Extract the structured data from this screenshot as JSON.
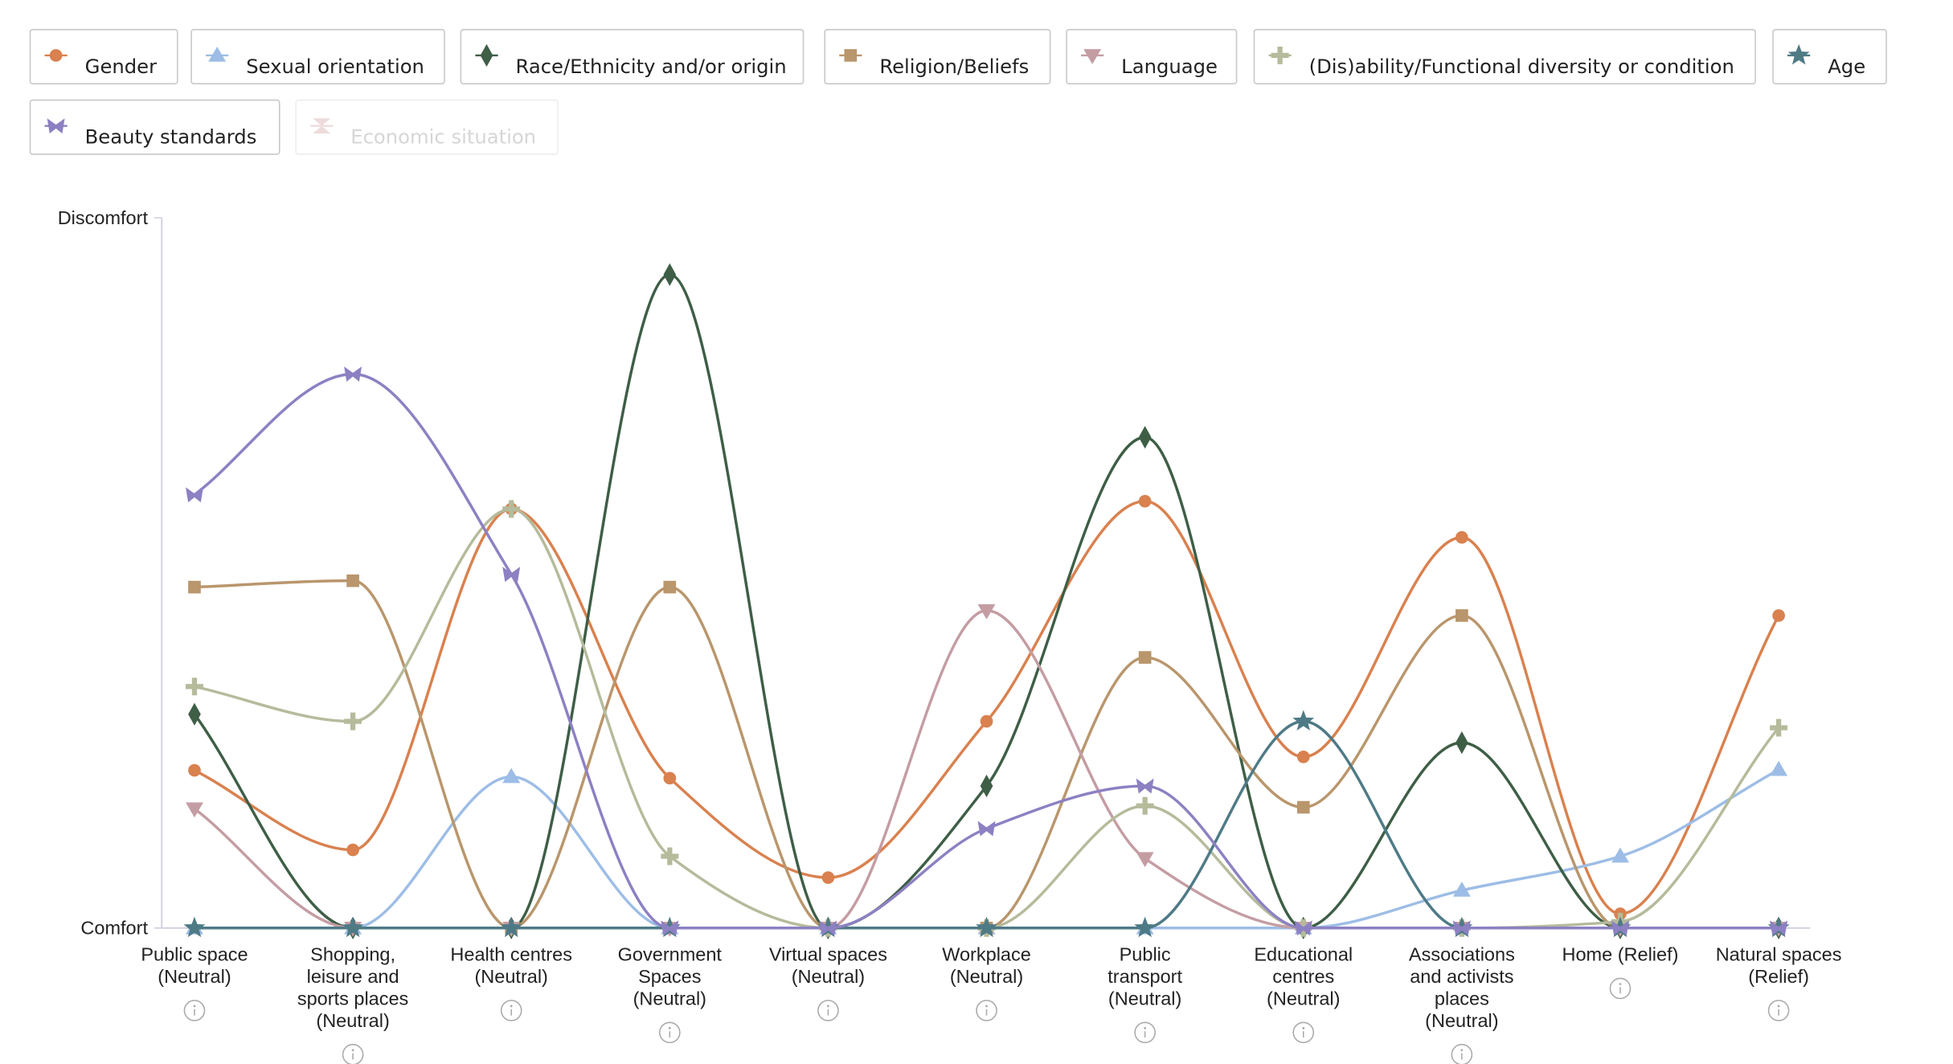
{
  "chart_data": {
    "type": "line",
    "categories": [
      "Public space\n(Neutral)",
      "Shopping,\nleisure and\nsports places\n(Neutral)",
      "Health centres\n(Neutral)",
      "Government\nSpaces\n(Neutral)",
      "Virtual spaces\n(Neutral)",
      "Workplace\n(Neutral)",
      "Public\ntransport\n(Neutral)",
      "Educational\ncentres\n(Neutral)",
      "Associations\nand activists\nplaces\n(Neutral)",
      "Home (Relief)",
      "Natural spaces\n(Relief)"
    ],
    "ylim": [
      0,
      100
    ],
    "yticks": [
      {
        "value": 0,
        "label": "Comfort"
      },
      {
        "value": 100,
        "label": "Discomfort"
      }
    ],
    "series": [
      {
        "name": "Gender",
        "color": "#d9814f",
        "marker": "circle",
        "visible": true,
        "values": [
          22.2,
          11.0,
          59.0,
          21.1,
          7.1,
          29.1,
          60.1,
          24.1,
          55.0,
          2.0,
          44.0
        ]
      },
      {
        "name": "Sexual orientation",
        "color": "#9dbde6",
        "marker": "triangle-up",
        "visible": true,
        "values": [
          0,
          0,
          21.3,
          0,
          0,
          0,
          0,
          0,
          5.3,
          10.1,
          22.3
        ]
      },
      {
        "name": "Race/Ethnicity and/or origin",
        "color": "#3e5e46",
        "marker": "diamond",
        "visible": true,
        "values": [
          30.1,
          0,
          0,
          92.0,
          0,
          20.0,
          69.1,
          0,
          26.1,
          0,
          0
        ]
      },
      {
        "name": "Religion/Beliefs",
        "color": "#b9966c",
        "marker": "square",
        "visible": true,
        "values": [
          48.0,
          48.9,
          0,
          48.0,
          0,
          0,
          38.1,
          17.0,
          44.0,
          0,
          0
        ]
      },
      {
        "name": "Language",
        "color": "#c49da3",
        "marker": "triangle-down",
        "visible": true,
        "values": [
          16.8,
          0,
          0,
          0,
          0,
          44.7,
          9.8,
          0,
          0,
          0,
          0
        ]
      },
      {
        "name": "(Dis)ability/Functional diversity or condition",
        "color": "#b5bb9b",
        "marker": "plus",
        "visible": true,
        "values": [
          34.0,
          29.1,
          59.0,
          10.1,
          0,
          0,
          17.2,
          0,
          0,
          0.9,
          28.2
        ]
      },
      {
        "name": "Age",
        "color": "#4e7a86",
        "marker": "star",
        "visible": true,
        "values": [
          0,
          0,
          0,
          0,
          0,
          0,
          0,
          29.1,
          0,
          0,
          0
        ]
      },
      {
        "name": "Beauty standards",
        "color": "#8d80c3",
        "marker": "bowtie",
        "visible": true,
        "values": [
          61.0,
          78.0,
          49.8,
          0,
          0,
          14.0,
          20.0,
          0,
          0,
          0,
          0
        ]
      },
      {
        "name": "Economic situation",
        "color": "#e3c4c4",
        "marker": "hourglass",
        "visible": false,
        "values": [
          null,
          null,
          null,
          null,
          null,
          null,
          null,
          null,
          null,
          null,
          null
        ]
      }
    ]
  }
}
